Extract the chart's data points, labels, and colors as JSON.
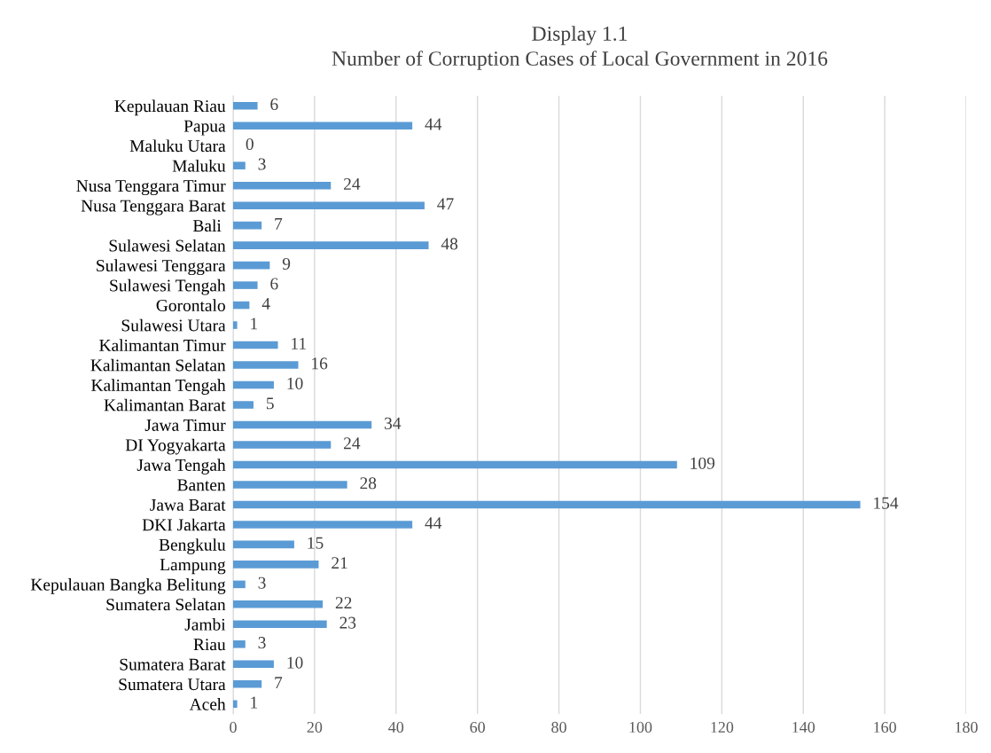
{
  "chart_data": {
    "type": "bar",
    "orientation": "horizontal",
    "title": "Display 1.1",
    "subtitle": "Number of Corruption Cases of Local Government in 2016",
    "categories": [
      "Kepulauan Riau",
      "Papua",
      "Maluku Utara",
      "Maluku",
      "Nusa Tenggara Timur",
      "Nusa Tenggara Barat",
      "Bali ",
      "Sulawesi Selatan",
      "Sulawesi Tenggara",
      "Sulawesi Tengah",
      "Gorontalo",
      "Sulawesi Utara",
      "Kalimantan Timur",
      "Kalimantan Selatan",
      "Kalimantan Tengah",
      "Kalimantan Barat",
      "Jawa Timur",
      "DI Yogyakarta",
      "Jawa Tengah",
      "Banten",
      "Jawa Barat",
      "DKI Jakarta",
      "Bengkulu",
      "Lampung",
      "Kepulauan Bangka Belitung",
      "Sumatera Selatan",
      "Jambi",
      "Riau",
      "Sumatera Barat",
      "Sumatera Utara",
      "Aceh"
    ],
    "values": [
      6,
      44,
      0,
      3,
      24,
      47,
      7,
      48,
      9,
      6,
      4,
      1,
      11,
      16,
      10,
      5,
      34,
      24,
      109,
      28,
      154,
      44,
      15,
      21,
      3,
      22,
      23,
      3,
      10,
      7,
      1
    ],
    "color": "#5b9bd5",
    "data_labels": true,
    "xlim": [
      0,
      180
    ],
    "xticks": [
      0,
      20,
      40,
      60,
      80,
      100,
      120,
      140,
      160,
      180
    ],
    "grid": "x"
  }
}
